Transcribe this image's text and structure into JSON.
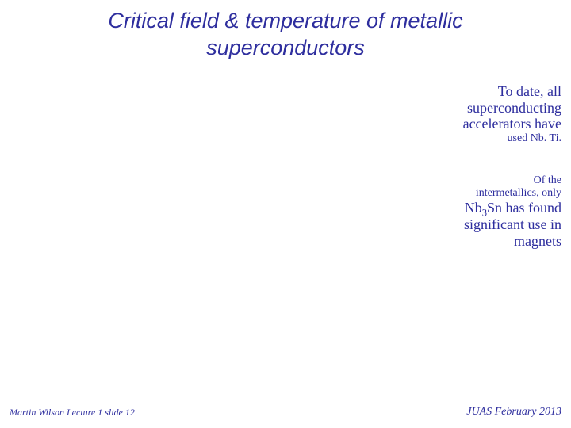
{
  "title": "Critical field & temperature of metallic superconductors",
  "block1": {
    "l1": "To date, all",
    "l2": "superconducting",
    "l3": "accelerators have",
    "l4": "used Nb. Ti."
  },
  "block2": {
    "l1": "Of the",
    "l2": "intermetallics, only",
    "l3a": "Nb",
    "l3sub": "3",
    "l3b": "Sn has  found",
    "l4": "significant use in",
    "l5": "magnets"
  },
  "footer": {
    "left": "Martin Wilson Lecture 1 slide 12",
    "right": "JUAS February 2013"
  },
  "colors": {
    "text": "#2e2e9e",
    "background": "#ffffff"
  }
}
